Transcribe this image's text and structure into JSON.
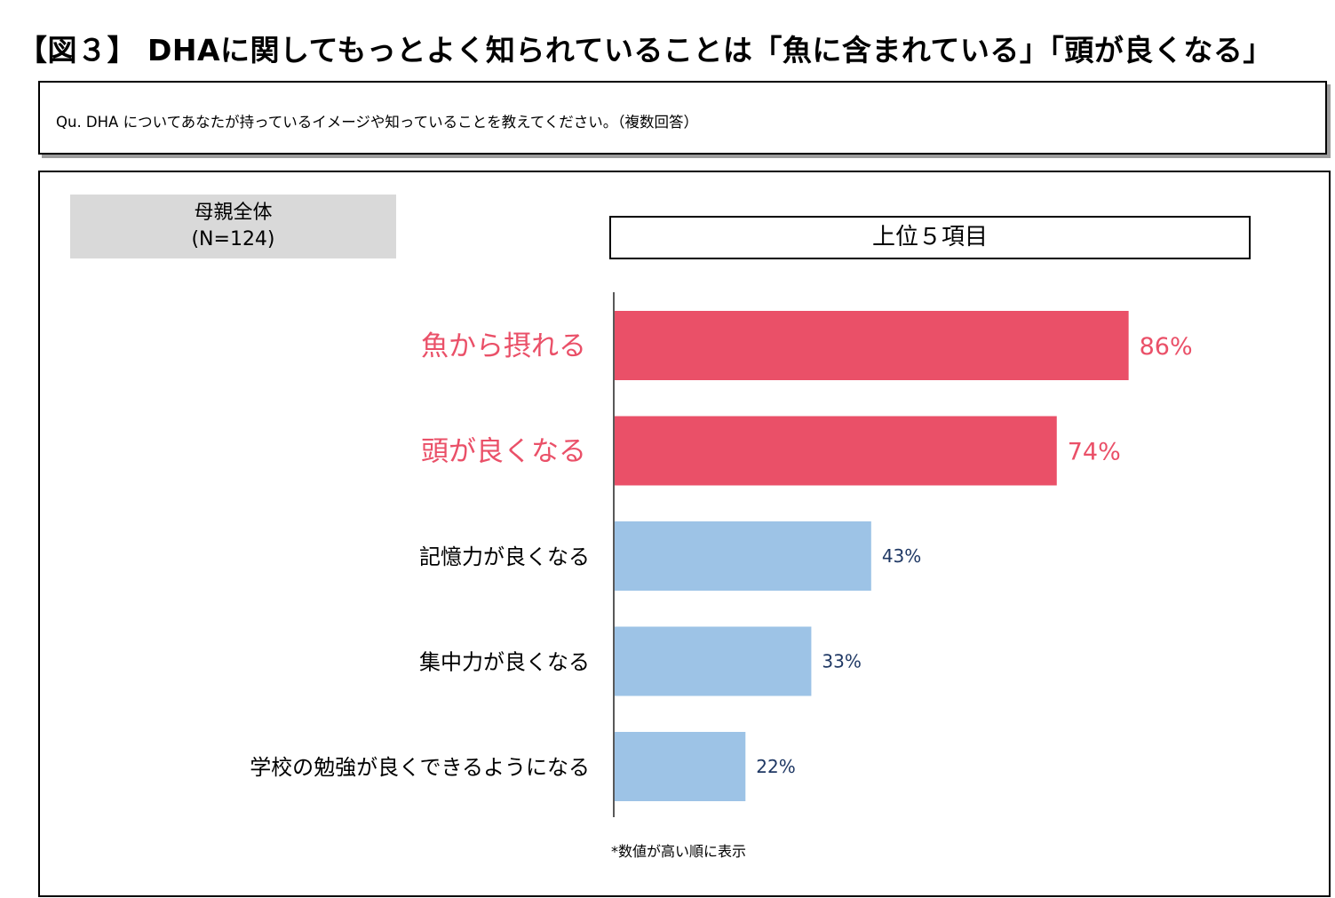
{
  "title": "【図３】 DHAに関してもっとよく知られていることは「魚に含まれている」「頭が良くなる」",
  "question": "Qu. DHA についてあなたが持っているイメージや知っていることを教えてください。（複数回答）",
  "sample": {
    "line1": "母親全体",
    "line2": "(N=124)"
  },
  "panel_title": "上位５項目",
  "note": "*数値が高い順に表示",
  "colors": {
    "highlight": "#ea5068",
    "normal": "#9dc3e6",
    "normal_label": "#1f3864",
    "axis": "#595959"
  },
  "chart_data": {
    "type": "bar",
    "orientation": "horizontal",
    "title": "上位５項目",
    "categories": [
      "魚から摂れる",
      "頭が良くなる",
      "記憶力が良くなる",
      "集中力が良くなる",
      "学校の勉強が良くできるようになる"
    ],
    "values": [
      86,
      74,
      43,
      33,
      22
    ],
    "value_labels": [
      "86%",
      "74%",
      "43%",
      "33%",
      "22%"
    ],
    "unit": "%",
    "highlighted": [
      true,
      true,
      false,
      false,
      false
    ],
    "xlim": [
      0,
      100
    ],
    "grid": false,
    "legend": "none"
  }
}
